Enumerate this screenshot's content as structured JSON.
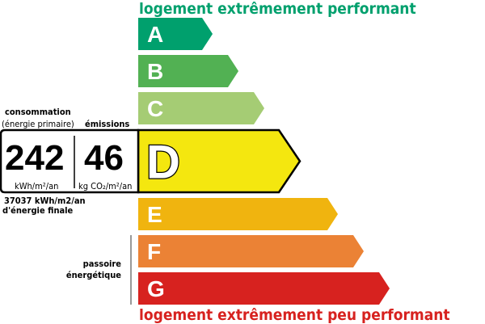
{
  "header_top": "logement extrêmement performant",
  "header_bottom": "logement extrêmement peu performant",
  "colors": {
    "top": "#00a06d",
    "bottom": "#d7221f"
  },
  "classes": [
    {
      "letter": "A",
      "color": "#00a06d"
    },
    {
      "letter": "B",
      "color": "#52b153"
    },
    {
      "letter": "C",
      "color": "#a5cc74"
    },
    {
      "letter": "D",
      "color": "#f4e70f"
    },
    {
      "letter": "E",
      "color": "#f0b40f"
    },
    {
      "letter": "F",
      "color": "#eb8235"
    },
    {
      "letter": "G",
      "color": "#d7221f"
    }
  ],
  "current_class": "D",
  "consumption": {
    "label": "consommation",
    "sublabel": "(énergie primaire)",
    "value": "242",
    "unit": "kWh/m²/an"
  },
  "emissions": {
    "label": "émissions",
    "value": "46",
    "unit": "kg CO₂/m²/an"
  },
  "final_energy": {
    "line1": "37037 kWh/m2/an",
    "line2": "d'énergie finale"
  },
  "passoire": {
    "line1": "passoire",
    "line2": "énergétique"
  }
}
